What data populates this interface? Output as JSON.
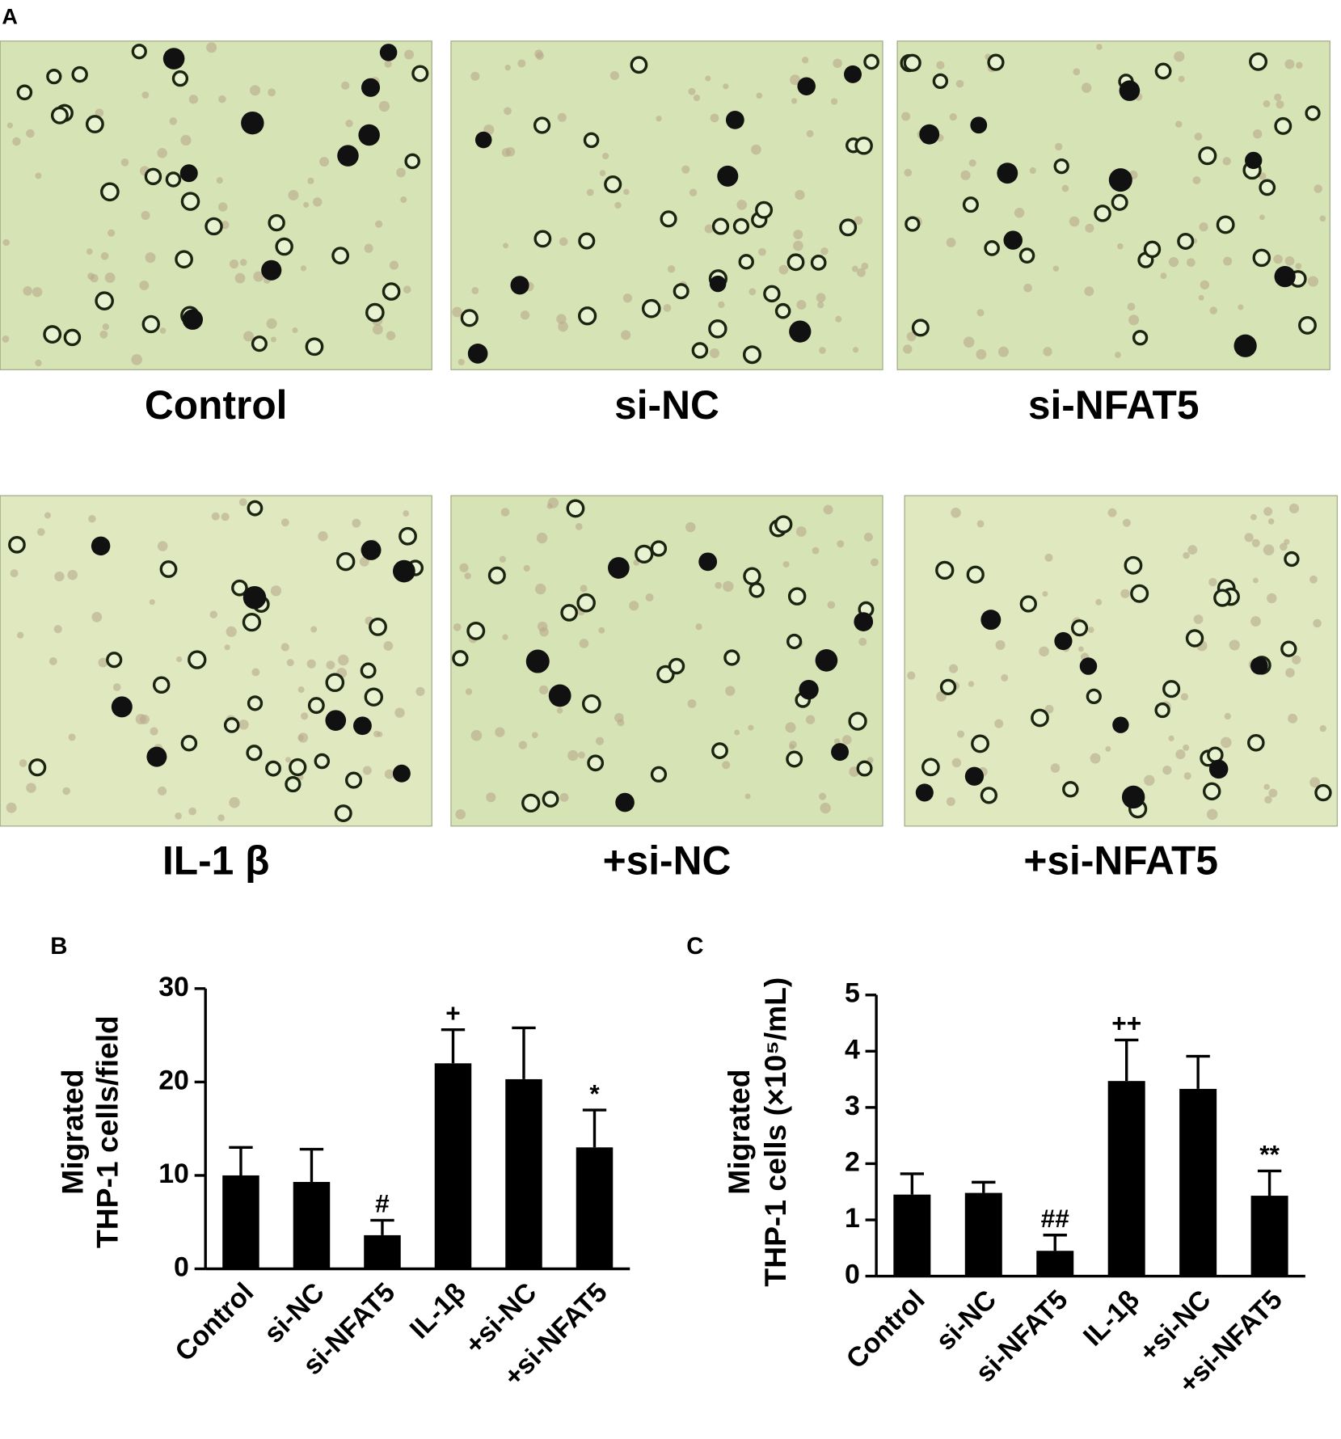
{
  "panel_a": {
    "label": "A",
    "captions": [
      "Control",
      "si-NC",
      "si-NFAT5",
      "IL-1 β",
      "+si-NC",
      "+si-NFAT5"
    ]
  },
  "chart_data": [
    {
      "type": "bar",
      "panel": "B",
      "ylabel": [
        "Migrated",
        "THP-1 cells/field"
      ],
      "categories": [
        "Control",
        "si-NC",
        "si-NFAT5",
        "IL-1β",
        "+si-NC",
        "+si-NFAT5"
      ],
      "values": [
        10,
        9.3,
        3.6,
        22,
        20.3,
        13
      ],
      "errors": [
        3,
        3.5,
        1.6,
        3.6,
        5.5,
        4
      ],
      "annotations": [
        null,
        null,
        "#",
        "+",
        null,
        "*"
      ],
      "color": "#000000",
      "ylim": [
        0,
        30
      ],
      "yticks": [
        0,
        10,
        20,
        30
      ]
    },
    {
      "type": "bar",
      "panel": "C",
      "ylabel": [
        "Migrated",
        "THP-1 cells (×10⁵/mL)"
      ],
      "categories": [
        "Control",
        "si-NC",
        "si-NFAT5",
        "IL-1β",
        "+si-NC",
        "+si-NFAT5"
      ],
      "values": [
        1.45,
        1.48,
        0.45,
        3.47,
        3.33,
        1.43
      ],
      "errors": [
        0.37,
        0.19,
        0.28,
        0.73,
        0.58,
        0.44
      ],
      "annotations": [
        null,
        null,
        "##",
        "++",
        null,
        "**"
      ],
      "color": "#000000",
      "ylim": [
        0,
        5
      ],
      "yticks": [
        0,
        1,
        2,
        3,
        4,
        5
      ]
    }
  ]
}
